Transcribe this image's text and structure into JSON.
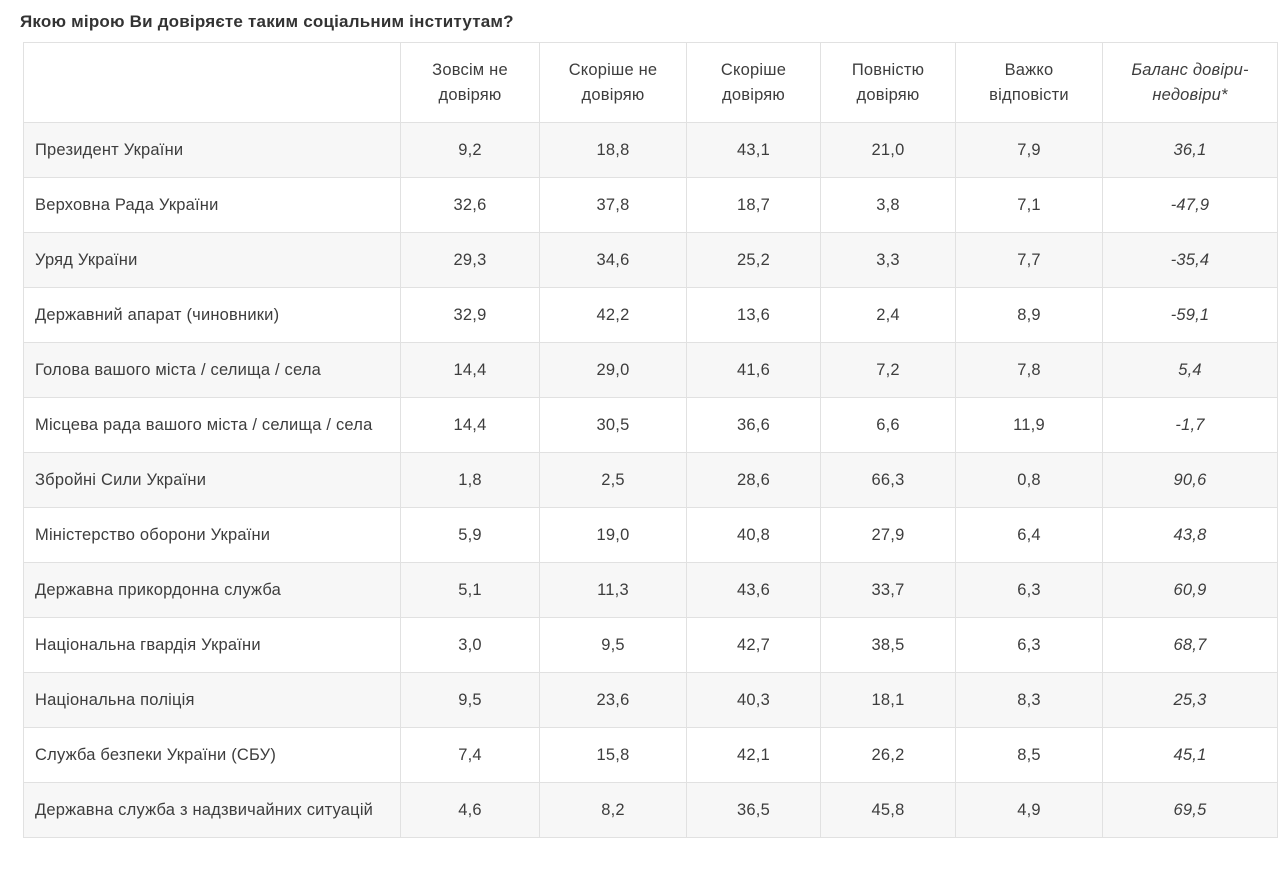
{
  "page": {
    "title": "Якою мірою Ви довіряєте таким соціальним інститутам?"
  },
  "colors": {
    "background": "#ffffff",
    "row_alternate": "#f7f7f7",
    "border": "#e1e1e1",
    "text": "#3d3d3d",
    "title_text": "#333333"
  },
  "chart_data": {
    "type": "table",
    "title": "Якою мірою Ви довіряєте таким соціальним інститутам?",
    "decimal_separator": ",",
    "columns": [
      "Зовсім не довіряю",
      "Скоріше не довіряю",
      "Скоріше довіряю",
      "Повністю довіряю",
      "Важко відповісти",
      "Баланс довіри-недовіри*"
    ],
    "rows": [
      {
        "institution": "Президент України",
        "values": [
          9.2,
          18.8,
          43.1,
          21.0,
          7.9,
          36.1
        ]
      },
      {
        "institution": "Верховна Рада України",
        "values": [
          32.6,
          37.8,
          18.7,
          3.8,
          7.1,
          -47.9
        ]
      },
      {
        "institution": "Уряд України",
        "values": [
          29.3,
          34.6,
          25.2,
          3.3,
          7.7,
          -35.4
        ]
      },
      {
        "institution": "Державний апарат (чиновники)",
        "values": [
          32.9,
          42.2,
          13.6,
          2.4,
          8.9,
          -59.1
        ]
      },
      {
        "institution": "Голова вашого міста / селища / села",
        "values": [
          14.4,
          29.0,
          41.6,
          7.2,
          7.8,
          5.4
        ]
      },
      {
        "institution": "Місцева рада вашого міста / селища / села",
        "values": [
          14.4,
          30.5,
          36.6,
          6.6,
          11.9,
          -1.7
        ]
      },
      {
        "institution": "Збройні Сили України",
        "values": [
          1.8,
          2.5,
          28.6,
          66.3,
          0.8,
          90.6
        ]
      },
      {
        "institution": "Міністерство оборони України",
        "values": [
          5.9,
          19.0,
          40.8,
          27.9,
          6.4,
          43.8
        ]
      },
      {
        "institution": "Державна прикордонна служба",
        "values": [
          5.1,
          11.3,
          43.6,
          33.7,
          6.3,
          60.9
        ]
      },
      {
        "institution": "Національна гвардія України",
        "values": [
          3.0,
          9.5,
          42.7,
          38.5,
          6.3,
          68.7
        ]
      },
      {
        "institution": "Національна поліція",
        "values": [
          9.5,
          23.6,
          40.3,
          18.1,
          8.3,
          25.3
        ]
      },
      {
        "institution": "Служба безпеки України (СБУ)",
        "values": [
          7.4,
          15.8,
          42.1,
          26.2,
          8.5,
          45.1
        ]
      },
      {
        "institution": "Державна служба з надзвичайних ситуацій",
        "values": [
          4.6,
          8.2,
          36.5,
          45.8,
          4.9,
          69.5
        ]
      }
    ]
  }
}
